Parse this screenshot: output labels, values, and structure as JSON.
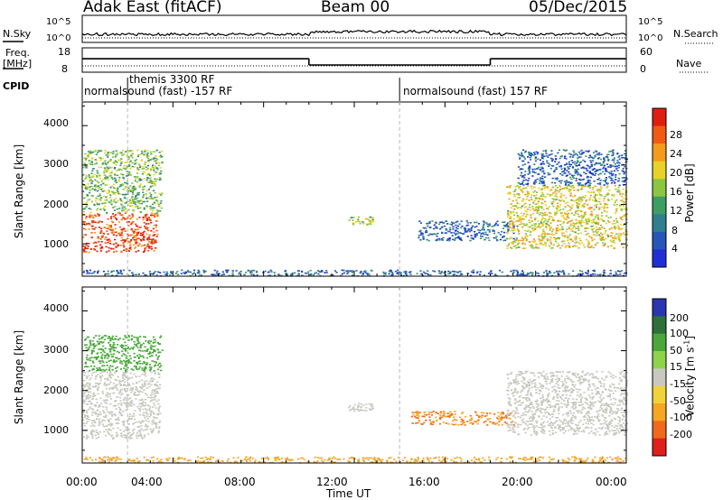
{
  "header": {
    "station": "Adak East (fitACF)",
    "beam": "Beam 00",
    "date": "05/Dec/2015"
  },
  "top_panels": {
    "nsky_label": "N.Sky",
    "nsearch_label": "N.Search",
    "nsky_ticks": [
      "10^5",
      "10^0"
    ],
    "nsearch_ticks": [
      "10^5",
      "10^0"
    ],
    "freq_label_line1": "Freq.",
    "freq_label_line2": "[MHz]",
    "freq_ticks": [
      "18",
      "8"
    ],
    "nave_label": "Nave",
    "nave_ticks": [
      "60",
      "0"
    ],
    "cpid_label": "CPID",
    "cpid_segments": [
      {
        "label": "normalsound (fast) -157 RF",
        "start_hour": 0,
        "end_hour": 14
      },
      {
        "label": "themis 3300 RF",
        "start_hour": 2,
        "end_hour": 2
      },
      {
        "label": "normalsound (fast) 157 RF",
        "start_hour": 14,
        "end_hour": 24
      }
    ],
    "frequency_steps": [
      {
        "start_hour": 0,
        "end_hour": 10,
        "freq_mhz": 13.4
      },
      {
        "start_hour": 10,
        "end_hour": 18,
        "freq_mhz": 10.5
      },
      {
        "start_hour": 18,
        "end_hour": 24,
        "freq_mhz": 13.4
      }
    ]
  },
  "chart_data": [
    {
      "type": "heatmap",
      "panel": "power",
      "ylabel": "Slant Range [km]",
      "xlabel": "",
      "xlim_hours": [
        0,
        24
      ],
      "ylim_km": [
        180,
        4600
      ],
      "yticks": [
        "1000",
        "2000",
        "3000",
        "4000"
      ],
      "colorbar": {
        "label": "Power [dB]",
        "ticks": [
          "4",
          "8",
          "12",
          "16",
          "20",
          "24",
          "28"
        ],
        "range": [
          0,
          30
        ]
      },
      "echo_regions": [
        {
          "start_hour": 0.0,
          "end_hour": 3.3,
          "min_km": 800,
          "max_km": 1800,
          "value": 26
        },
        {
          "start_hour": 0.0,
          "end_hour": 3.5,
          "min_km": 1800,
          "max_km": 3400,
          "value": 14
        },
        {
          "start_hour": 11.7,
          "end_hour": 12.8,
          "min_km": 1500,
          "max_km": 1700,
          "value": 16
        },
        {
          "start_hour": 14.8,
          "end_hour": 19.0,
          "min_km": 1100,
          "max_km": 1600,
          "value": 6
        },
        {
          "start_hour": 18.7,
          "end_hour": 24.0,
          "min_km": 900,
          "max_km": 2500,
          "value": 18
        },
        {
          "start_hour": 19.2,
          "end_hour": 24.0,
          "min_km": 2500,
          "max_km": 3400,
          "value": 6
        },
        {
          "start_hour": 0.0,
          "end_hour": 24.0,
          "min_km": 200,
          "max_km": 350,
          "value": 6
        }
      ]
    },
    {
      "type": "heatmap",
      "panel": "velocity",
      "ylabel": "Slant Range [km]",
      "xlabel": "Time UT",
      "xlim_hours": [
        0,
        24
      ],
      "ylim_km": [
        180,
        4600
      ],
      "yticks": [
        "1000",
        "2000",
        "3000",
        "4000"
      ],
      "xticks": [
        "00:00",
        "04:00",
        "08:00",
        "12:00",
        "16:00",
        "20:00",
        "00:00"
      ],
      "colorbar": {
        "label": "Velocity [m s",
        "label_sup": "-1",
        "label_end": "]",
        "ticks": [
          "200",
          "100",
          "50",
          "15",
          "-15",
          "-50",
          "-100",
          "-200"
        ]
      },
      "echo_regions": [
        {
          "start_hour": 0.0,
          "end_hour": 3.4,
          "min_km": 800,
          "max_km": 2500,
          "value": 0
        },
        {
          "start_hour": 0.0,
          "end_hour": 3.5,
          "min_km": 2500,
          "max_km": 3400,
          "value": 40
        },
        {
          "start_hour": 11.7,
          "end_hour": 12.8,
          "min_km": 1500,
          "max_km": 1700,
          "value": 0
        },
        {
          "start_hour": 14.5,
          "end_hour": 19.0,
          "min_km": 1150,
          "max_km": 1500,
          "value": -60
        },
        {
          "start_hour": 18.7,
          "end_hour": 24.0,
          "min_km": 900,
          "max_km": 2500,
          "value": 0
        },
        {
          "start_hour": 0.0,
          "end_hour": 24.0,
          "min_km": 200,
          "max_km": 350,
          "value": -40
        }
      ]
    }
  ]
}
